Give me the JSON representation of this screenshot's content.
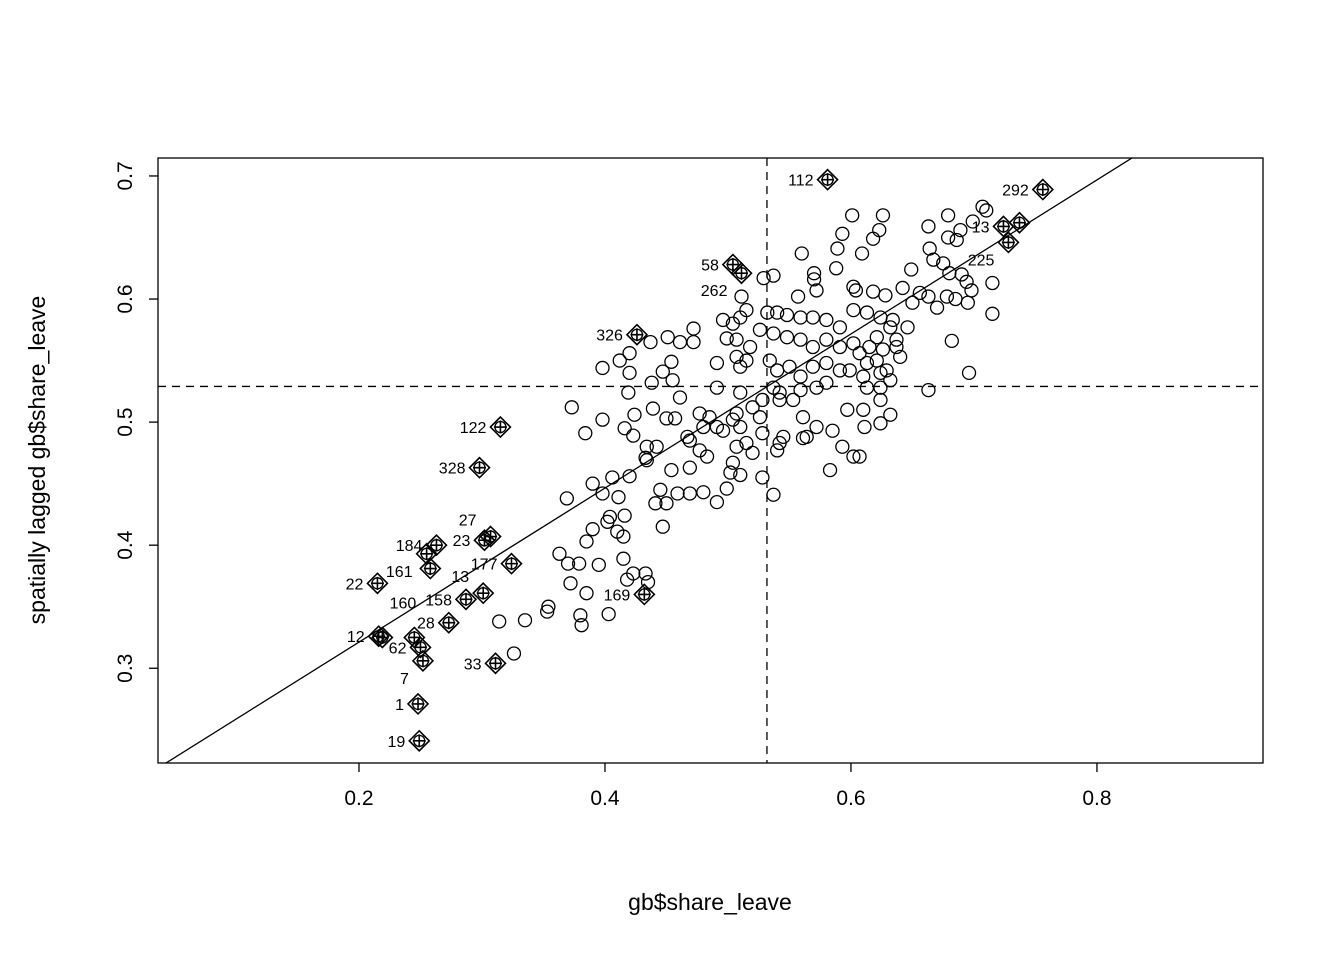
{
  "chart_data": {
    "type": "scatter",
    "title": "",
    "xlabel": "gb$share_leave",
    "ylabel": "spatially lagged gb$share_leave",
    "xlim": [
      0.0366,
      0.935
    ],
    "ylim": [
      0.223,
      0.7146
    ],
    "xticks": [
      "0.2",
      "0.4",
      "0.6",
      "0.8"
    ],
    "yticks": [
      "0.3",
      "0.4",
      "0.5",
      "0.6",
      "0.7"
    ],
    "grid": false,
    "mean_x": 0.5317,
    "mean_y": 0.529,
    "regression": {
      "slope": 0.626,
      "intercept": 0.196
    },
    "points": [
      [
        0.314,
        0.338
      ],
      [
        0.326,
        0.312
      ],
      [
        0.335,
        0.339
      ],
      [
        0.353,
        0.346
      ],
      [
        0.354,
        0.35
      ],
      [
        0.363,
        0.393
      ],
      [
        0.37,
        0.385
      ],
      [
        0.372,
        0.369
      ],
      [
        0.379,
        0.385
      ],
      [
        0.38,
        0.343
      ],
      [
        0.381,
        0.335
      ],
      [
        0.385,
        0.361
      ],
      [
        0.385,
        0.403
      ],
      [
        0.395,
        0.384
      ],
      [
        0.403,
        0.344
      ],
      [
        0.39,
        0.413
      ],
      [
        0.402,
        0.419
      ],
      [
        0.41,
        0.411
      ],
      [
        0.415,
        0.407
      ],
      [
        0.415,
        0.389
      ],
      [
        0.416,
        0.424
      ],
      [
        0.418,
        0.372
      ],
      [
        0.423,
        0.377
      ],
      [
        0.433,
        0.377
      ],
      [
        0.435,
        0.37
      ],
      [
        0.369,
        0.438
      ],
      [
        0.39,
        0.45
      ],
      [
        0.398,
        0.442
      ],
      [
        0.406,
        0.455
      ],
      [
        0.411,
        0.439
      ],
      [
        0.42,
        0.456
      ],
      [
        0.433,
        0.471
      ],
      [
        0.434,
        0.48
      ],
      [
        0.442,
        0.48
      ],
      [
        0.441,
        0.434
      ],
      [
        0.45,
        0.434
      ],
      [
        0.447,
        0.415
      ],
      [
        0.454,
        0.461
      ],
      [
        0.445,
        0.445
      ],
      [
        0.373,
        0.512
      ],
      [
        0.398,
        0.502
      ],
      [
        0.384,
        0.491
      ],
      [
        0.416,
        0.495
      ],
      [
        0.423,
        0.489
      ],
      [
        0.424,
        0.506
      ],
      [
        0.439,
        0.511
      ],
      [
        0.45,
        0.503
      ],
      [
        0.457,
        0.503
      ],
      [
        0.398,
        0.544
      ],
      [
        0.412,
        0.55
      ],
      [
        0.42,
        0.556
      ],
      [
        0.42,
        0.54
      ],
      [
        0.419,
        0.524
      ],
      [
        0.437,
        0.565
      ],
      [
        0.438,
        0.532
      ],
      [
        0.447,
        0.541
      ],
      [
        0.454,
        0.549
      ],
      [
        0.455,
        0.534
      ],
      [
        0.451,
        0.569
      ],
      [
        0.461,
        0.565
      ],
      [
        0.472,
        0.576
      ],
      [
        0.472,
        0.565
      ],
      [
        0.461,
        0.52
      ],
      [
        0.477,
        0.507
      ],
      [
        0.48,
        0.496
      ],
      [
        0.485,
        0.504
      ],
      [
        0.491,
        0.496
      ],
      [
        0.496,
        0.493
      ],
      [
        0.504,
        0.502
      ],
      [
        0.51,
        0.496
      ],
      [
        0.467,
        0.488
      ],
      [
        0.469,
        0.485
      ],
      [
        0.477,
        0.477
      ],
      [
        0.483,
        0.472
      ],
      [
        0.434,
        0.469
      ],
      [
        0.469,
        0.463
      ],
      [
        0.469,
        0.442
      ],
      [
        0.48,
        0.443
      ],
      [
        0.491,
        0.435
      ],
      [
        0.459,
        0.442
      ],
      [
        0.499,
        0.446
      ],
      [
        0.504,
        0.467
      ],
      [
        0.502,
        0.459
      ],
      [
        0.51,
        0.457
      ],
      [
        0.404,
        0.423
      ],
      [
        0.507,
        0.48
      ],
      [
        0.515,
        0.483
      ],
      [
        0.52,
        0.475
      ],
      [
        0.528,
        0.455
      ],
      [
        0.537,
        0.441
      ],
      [
        0.528,
        0.491
      ],
      [
        0.54,
        0.477
      ],
      [
        0.542,
        0.483
      ],
      [
        0.545,
        0.488
      ],
      [
        0.561,
        0.487
      ],
      [
        0.583,
        0.461
      ],
      [
        0.593,
        0.48
      ],
      [
        0.602,
        0.472
      ],
      [
        0.607,
        0.472
      ],
      [
        0.564,
        0.488
      ],
      [
        0.572,
        0.496
      ],
      [
        0.585,
        0.493
      ],
      [
        0.597,
        0.51
      ],
      [
        0.61,
        0.51
      ],
      [
        0.611,
        0.496
      ],
      [
        0.624,
        0.499
      ],
      [
        0.632,
        0.506
      ],
      [
        0.624,
        0.518
      ],
      [
        0.553,
        0.518
      ],
      [
        0.561,
        0.504
      ],
      [
        0.526,
        0.504
      ],
      [
        0.52,
        0.512
      ],
      [
        0.507,
        0.507
      ],
      [
        0.528,
        0.518
      ],
      [
        0.542,
        0.518
      ],
      [
        0.51,
        0.524
      ],
      [
        0.537,
        0.528
      ],
      [
        0.542,
        0.524
      ],
      [
        0.559,
        0.526
      ],
      [
        0.572,
        0.528
      ],
      [
        0.58,
        0.532
      ],
      [
        0.613,
        0.528
      ],
      [
        0.624,
        0.528
      ],
      [
        0.491,
        0.528
      ],
      [
        0.491,
        0.548
      ],
      [
        0.507,
        0.553
      ],
      [
        0.515,
        0.55
      ],
      [
        0.51,
        0.545
      ],
      [
        0.534,
        0.55
      ],
      [
        0.54,
        0.542
      ],
      [
        0.55,
        0.545
      ],
      [
        0.559,
        0.537
      ],
      [
        0.569,
        0.545
      ],
      [
        0.58,
        0.548
      ],
      [
        0.591,
        0.542
      ],
      [
        0.599,
        0.542
      ],
      [
        0.613,
        0.548
      ],
      [
        0.624,
        0.54
      ],
      [
        0.632,
        0.534
      ],
      [
        0.496,
        0.583
      ],
      [
        0.504,
        0.58
      ],
      [
        0.515,
        0.591
      ],
      [
        0.51,
        0.585
      ],
      [
        0.499,
        0.568
      ],
      [
        0.507,
        0.567
      ],
      [
        0.518,
        0.561
      ],
      [
        0.526,
        0.575
      ],
      [
        0.537,
        0.572
      ],
      [
        0.548,
        0.569
      ],
      [
        0.559,
        0.567
      ],
      [
        0.569,
        0.561
      ],
      [
        0.58,
        0.567
      ],
      [
        0.591,
        0.561
      ],
      [
        0.602,
        0.564
      ],
      [
        0.615,
        0.561
      ],
      [
        0.626,
        0.559
      ],
      [
        0.637,
        0.561
      ],
      [
        0.64,
        0.553
      ],
      [
        0.532,
        0.589
      ],
      [
        0.54,
        0.589
      ],
      [
        0.548,
        0.587
      ],
      [
        0.559,
        0.585
      ],
      [
        0.569,
        0.585
      ],
      [
        0.58,
        0.583
      ],
      [
        0.591,
        0.577
      ],
      [
        0.602,
        0.591
      ],
      [
        0.613,
        0.589
      ],
      [
        0.624,
        0.585
      ],
      [
        0.634,
        0.583
      ],
      [
        0.646,
        0.577
      ],
      [
        0.511,
        0.602
      ],
      [
        0.529,
        0.617
      ],
      [
        0.537,
        0.619
      ],
      [
        0.56,
        0.637
      ],
      [
        0.57,
        0.621
      ],
      [
        0.57,
        0.616
      ],
      [
        0.572,
        0.607
      ],
      [
        0.557,
        0.602
      ],
      [
        0.588,
        0.625
      ],
      [
        0.589,
        0.641
      ],
      [
        0.593,
        0.653
      ],
      [
        0.601,
        0.668
      ],
      [
        0.609,
        0.637
      ],
      [
        0.618,
        0.649
      ],
      [
        0.623,
        0.656
      ],
      [
        0.626,
        0.668
      ],
      [
        0.602,
        0.61
      ],
      [
        0.604,
        0.607
      ],
      [
        0.618,
        0.606
      ],
      [
        0.628,
        0.603
      ],
      [
        0.642,
        0.609
      ],
      [
        0.649,
        0.624
      ],
      [
        0.65,
        0.597
      ],
      [
        0.656,
        0.605
      ],
      [
        0.663,
        0.602
      ],
      [
        0.67,
        0.593
      ],
      [
        0.678,
        0.602
      ],
      [
        0.685,
        0.6
      ],
      [
        0.695,
        0.597
      ],
      [
        0.663,
        0.659
      ],
      [
        0.679,
        0.668
      ],
      [
        0.707,
        0.675
      ],
      [
        0.71,
        0.672
      ],
      [
        0.699,
        0.663
      ],
      [
        0.689,
        0.656
      ],
      [
        0.679,
        0.65
      ],
      [
        0.686,
        0.648
      ],
      [
        0.664,
        0.641
      ],
      [
        0.667,
        0.632
      ],
      [
        0.675,
        0.629
      ],
      [
        0.68,
        0.621
      ],
      [
        0.69,
        0.62
      ],
      [
        0.694,
        0.614
      ],
      [
        0.698,
        0.607
      ],
      [
        0.715,
        0.613
      ],
      [
        0.715,
        0.588
      ],
      [
        0.682,
        0.566
      ],
      [
        0.696,
        0.54
      ],
      [
        0.663,
        0.526
      ],
      [
        0.621,
        0.569
      ],
      [
        0.632,
        0.577
      ],
      [
        0.637,
        0.567
      ],
      [
        0.607,
        0.556
      ],
      [
        0.621,
        0.55
      ],
      [
        0.629,
        0.542
      ],
      [
        0.61,
        0.537
      ]
    ],
    "influential": [
      {
        "label": "112",
        "x": 0.581,
        "y": 0.697
      },
      {
        "label": "292",
        "x": 0.756,
        "y": 0.689
      },
      {
        "label": "13",
        "x": 0.724,
        "y": 0.659
      },
      {
        "label": "",
        "x": 0.737,
        "y": 0.662
      },
      {
        "label": "225",
        "x": 0.728,
        "y": 0.646
      },
      {
        "label": "58",
        "x": 0.504,
        "y": 0.628
      },
      {
        "label": "262",
        "x": 0.511,
        "y": 0.621
      },
      {
        "label": "326",
        "x": 0.426,
        "y": 0.571
      },
      {
        "label": "122",
        "x": 0.315,
        "y": 0.496
      },
      {
        "label": "328",
        "x": 0.298,
        "y": 0.463
      },
      {
        "label": "23",
        "x": 0.302,
        "y": 0.404
      },
      {
        "label": "27",
        "x": 0.307,
        "y": 0.407
      },
      {
        "label": "177",
        "x": 0.324,
        "y": 0.385
      },
      {
        "label": "184",
        "x": 0.263,
        "y": 0.4
      },
      {
        "label": "161",
        "x": 0.255,
        "y": 0.393
      },
      {
        "label": "160",
        "x": 0.258,
        "y": 0.381
      },
      {
        "label": "22",
        "x": 0.215,
        "y": 0.369
      },
      {
        "label": "158",
        "x": 0.287,
        "y": 0.356
      },
      {
        "label": "13",
        "x": 0.301,
        "y": 0.361
      },
      {
        "label": "169",
        "x": 0.432,
        "y": 0.36
      },
      {
        "label": "28",
        "x": 0.273,
        "y": 0.337
      },
      {
        "label": "12",
        "x": 0.216,
        "y": 0.326
      },
      {
        "label": "",
        "x": 0.219,
        "y": 0.325
      },
      {
        "label": "",
        "x": 0.245,
        "y": 0.325
      },
      {
        "label": "62",
        "x": 0.25,
        "y": 0.317
      },
      {
        "label": "7",
        "x": 0.252,
        "y": 0.306
      },
      {
        "label": "33",
        "x": 0.311,
        "y": 0.304
      },
      {
        "label": "1",
        "x": 0.248,
        "y": 0.271
      },
      {
        "label": "19",
        "x": 0.249,
        "y": 0.241
      }
    ]
  }
}
